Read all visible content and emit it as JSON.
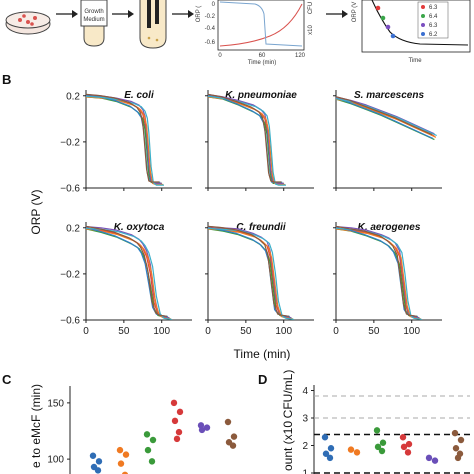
{
  "panel_letters": {
    "b": "B",
    "c": "C",
    "d": "D"
  },
  "schematic": {
    "box_text_1": "Growth",
    "box_text_2": "Medium",
    "inset_ylabel_left": "ORP (",
    "inset_ylabel_right": "x10",
    "inset_ylabel_right_unit": "CFU",
    "inset_xlabel": "Time (min)",
    "inset_ticks_y": [
      "0",
      "-0.2",
      "-0.4",
      "-0.6"
    ],
    "inset_ticks_x": [
      "0",
      "60",
      "120"
    ],
    "right_ylabel": "ORP (V",
    "right_xlabel": "Time",
    "legend_values": [
      "6.3",
      "6.4",
      "6.3",
      "6.2"
    ],
    "colors": {
      "growth": "#d9534f",
      "orp": "#7aa5cf",
      "legend": [
        "#e23b3b",
        "#3aa64a",
        "#7b4fc0",
        "#3a6fd0"
      ]
    }
  },
  "panel_b": {
    "y_axis_label": "ORP (V)",
    "x_axis_label": "Time (min)",
    "y_ticks": [
      "0.2",
      "−0.2",
      "−0.6"
    ],
    "x_ticks": [
      "0",
      "50",
      "100"
    ],
    "series_colors": [
      "#e8413b",
      "#3a9a3a",
      "#7a52b8",
      "#f07a22",
      "#2f7fc8",
      "#3bb0c9",
      "#8b5a3c"
    ],
    "panels": [
      {
        "title": "E. coli"
      },
      {
        "title": "K. pneumoniae"
      },
      {
        "title": "S. marcescens"
      },
      {
        "title": "K. oxytoca"
      },
      {
        "title": "C. freundii"
      },
      {
        "title": "K. aerogenes"
      }
    ]
  },
  "panel_c": {
    "y_axis_label": "e to eMcF (min)",
    "y_ticks": [
      "100",
      "150"
    ]
  },
  "panel_d": {
    "y_axis_label": "ount (x10",
    "y_axis_label_unit": "CFU/mL)",
    "y_ticks": [
      "1",
      "2",
      "3",
      "4"
    ]
  },
  "chart_data": [
    {
      "type": "line",
      "xlabel": "Time (min)",
      "ylabel": "ORP (V)",
      "xlim": [
        0,
        140
      ],
      "ylim": [
        -0.6,
        0.25
      ],
      "series_by_panel": [
        {
          "title": "E. coli",
          "series": [
            {
              "x": [
                0,
                20,
                40,
                60,
                70,
                75,
                78,
                80,
                83,
                86,
                90,
                100
              ],
              "y": [
                0.2,
                0.19,
                0.17,
                0.13,
                0.09,
                0.04,
                -0.05,
                -0.2,
                -0.45,
                -0.55,
                -0.56,
                -0.56
              ]
            },
            {
              "x": [
                0,
                20,
                40,
                60,
                70,
                75,
                78,
                80,
                83,
                86,
                90,
                100
              ],
              "y": [
                0.19,
                0.18,
                0.15,
                0.1,
                0.05,
                0.0,
                -0.1,
                -0.25,
                -0.48,
                -0.55,
                -0.56,
                -0.56
              ]
            },
            {
              "x": [
                0,
                20,
                40,
                60,
                70,
                75,
                78,
                80,
                83,
                86,
                90,
                100
              ],
              "y": [
                0.21,
                0.2,
                0.18,
                0.15,
                0.12,
                0.08,
                0.02,
                -0.1,
                -0.4,
                -0.54,
                -0.56,
                -0.56
              ]
            }
          ]
        },
        {
          "title": "K. pneumoniae",
          "series": [
            {
              "x": [
                0,
                20,
                40,
                60,
                70,
                75,
                78,
                80,
                83,
                86,
                90,
                100
              ],
              "y": [
                0.2,
                0.18,
                0.14,
                0.09,
                0.05,
                0.0,
                -0.1,
                -0.25,
                -0.48,
                -0.55,
                -0.56,
                -0.56
              ]
            },
            {
              "x": [
                0,
                20,
                40,
                60,
                70,
                75,
                78,
                80,
                83,
                86,
                90,
                100
              ],
              "y": [
                0.19,
                0.17,
                0.12,
                0.06,
                0.02,
                -0.04,
                -0.14,
                -0.3,
                -0.5,
                -0.56,
                -0.56,
                -0.56
              ]
            },
            {
              "x": [
                0,
                20,
                40,
                60,
                70,
                75,
                78,
                80,
                83,
                86,
                90,
                100
              ],
              "y": [
                0.21,
                0.19,
                0.16,
                0.12,
                0.08,
                0.04,
                -0.05,
                -0.2,
                -0.45,
                -0.55,
                -0.56,
                -0.56
              ]
            }
          ]
        },
        {
          "title": "S. marcescens",
          "series": [
            {
              "x": [
                0,
                20,
                40,
                60,
                80,
                100,
                120,
                130
              ],
              "y": [
                0.18,
                0.15,
                0.1,
                0.05,
                -0.0,
                -0.06,
                -0.12,
                -0.15
              ]
            },
            {
              "x": [
                0,
                20,
                40,
                60,
                80,
                100,
                120,
                130
              ],
              "y": [
                0.17,
                0.13,
                0.08,
                0.03,
                -0.03,
                -0.09,
                -0.15,
                -0.18
              ]
            },
            {
              "x": [
                0,
                20,
                40,
                60,
                80,
                100,
                120,
                130
              ],
              "y": [
                0.19,
                0.16,
                0.12,
                0.07,
                0.02,
                -0.04,
                -0.1,
                -0.13
              ]
            }
          ]
        },
        {
          "title": "K. oxytoca",
          "series": [
            {
              "x": [
                0,
                20,
                40,
                60,
                70,
                75,
                80,
                85,
                90,
                95,
                100,
                110
              ],
              "y": [
                0.2,
                0.18,
                0.15,
                0.1,
                0.06,
                0.02,
                -0.05,
                -0.2,
                -0.45,
                -0.55,
                -0.57,
                -0.58
              ]
            },
            {
              "x": [
                0,
                20,
                40,
                60,
                70,
                75,
                80,
                85,
                90,
                95,
                100,
                110
              ],
              "y": [
                0.19,
                0.16,
                0.12,
                0.06,
                0.02,
                -0.03,
                -0.12,
                -0.3,
                -0.5,
                -0.56,
                -0.57,
                -0.58
              ]
            },
            {
              "x": [
                0,
                20,
                40,
                60,
                70,
                75,
                80,
                85,
                90,
                95,
                100,
                110
              ],
              "y": [
                0.21,
                0.2,
                0.18,
                0.14,
                0.1,
                0.06,
                0.0,
                -0.12,
                -0.38,
                -0.53,
                -0.57,
                -0.58
              ]
            }
          ]
        },
        {
          "title": "C. freundii",
          "series": [
            {
              "x": [
                0,
                20,
                40,
                60,
                70,
                78,
                82,
                86,
                90,
                95,
                100,
                110
              ],
              "y": [
                0.2,
                0.19,
                0.17,
                0.13,
                0.09,
                0.04,
                -0.05,
                -0.25,
                -0.47,
                -0.56,
                -0.57,
                -0.58
              ]
            },
            {
              "x": [
                0,
                20,
                40,
                60,
                70,
                78,
                82,
                86,
                90,
                95,
                100,
                110
              ],
              "y": [
                0.19,
                0.17,
                0.14,
                0.09,
                0.05,
                -0.01,
                -0.1,
                -0.32,
                -0.52,
                -0.56,
                -0.57,
                -0.58
              ]
            },
            {
              "x": [
                0,
                20,
                40,
                60,
                70,
                78,
                82,
                86,
                90,
                95,
                100,
                110
              ],
              "y": [
                0.21,
                0.2,
                0.19,
                0.15,
                0.12,
                0.08,
                0.0,
                -0.18,
                -0.42,
                -0.55,
                -0.57,
                -0.58
              ]
            }
          ]
        },
        {
          "title": "K. aerogenes",
          "series": [
            {
              "x": [
                0,
                20,
                40,
                60,
                70,
                78,
                84,
                88,
                92,
                96,
                100,
                110
              ],
              "y": [
                0.2,
                0.18,
                0.16,
                0.12,
                0.08,
                0.03,
                -0.05,
                -0.25,
                -0.47,
                -0.56,
                -0.57,
                -0.58
              ]
            },
            {
              "x": [
                0,
                20,
                40,
                60,
                70,
                78,
                84,
                88,
                92,
                96,
                100,
                110
              ],
              "y": [
                0.19,
                0.17,
                0.13,
                0.08,
                0.04,
                -0.02,
                -0.12,
                -0.32,
                -0.52,
                -0.56,
                -0.57,
                -0.58
              ]
            },
            {
              "x": [
                0,
                20,
                40,
                60,
                70,
                78,
                84,
                88,
                92,
                96,
                100,
                110
              ],
              "y": [
                0.21,
                0.2,
                0.18,
                0.14,
                0.11,
                0.07,
                0.0,
                -0.18,
                -0.42,
                -0.55,
                -0.57,
                -0.58
              ]
            }
          ]
        }
      ]
    },
    {
      "type": "scatter",
      "ylabel": "e to eMcF (min)",
      "ylim": [
        85,
        165
      ],
      "groups": [
        {
          "color": "#2f6db5",
          "values": [
            103,
            98,
            93,
            90
          ]
        },
        {
          "color": "#f07a22",
          "values": [
            108,
            104,
            96,
            86
          ]
        },
        {
          "color": "#3a9a3a",
          "values": [
            122,
            117,
            108,
            98
          ]
        },
        {
          "color": "#d6393a",
          "values": [
            150,
            142,
            134,
            124,
            118
          ]
        },
        {
          "color": "#6a4fb8",
          "values": [
            130,
            128,
            126
          ]
        },
        {
          "color": "#8b5a3c",
          "values": [
            133,
            120,
            115,
            112
          ]
        }
      ]
    },
    {
      "type": "scatter",
      "ylabel": "ount (x10 CFU/mL)",
      "ylim": [
        1,
        4.2
      ],
      "reference_lines": [
        {
          "y": 3.8,
          "style": "dashed-light"
        },
        {
          "y": 3.0,
          "style": "dashed-light"
        },
        {
          "y": 2.4,
          "style": "dashed-bold"
        },
        {
          "y": 1.0,
          "style": "dashed-bold"
        }
      ],
      "groups": [
        {
          "color": "#2f6db5",
          "values": [
            2.3,
            1.9,
            1.7,
            1.55
          ]
        },
        {
          "color": "#f07a22",
          "values": [
            1.85,
            1.75
          ]
        },
        {
          "color": "#3a9a3a",
          "values": [
            2.55,
            2.1,
            1.95,
            1.8
          ]
        },
        {
          "color": "#d6393a",
          "values": [
            2.3,
            2.05,
            1.95,
            1.75
          ]
        },
        {
          "color": "#6a4fb8",
          "values": [
            1.55,
            1.45
          ]
        },
        {
          "color": "#8b5a3c",
          "values": [
            2.45,
            2.2,
            1.9,
            1.7,
            1.55
          ]
        }
      ]
    }
  ]
}
